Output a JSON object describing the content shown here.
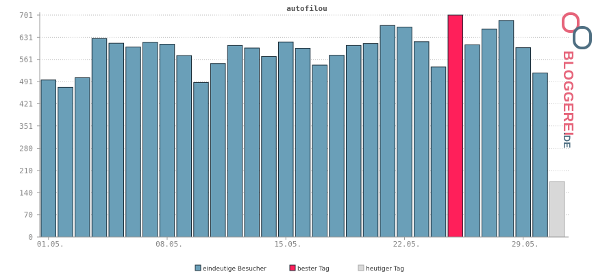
{
  "chart_data": {
    "type": "bar",
    "title": "autofilou",
    "xlabel": "",
    "ylabel": "",
    "ylim": [
      0,
      701
    ],
    "yticks": [
      0,
      70,
      140,
      210,
      280,
      351,
      421,
      491,
      561,
      631,
      701
    ],
    "xtick_labels": [
      {
        "index": 0,
        "label": "01.05."
      },
      {
        "index": 7,
        "label": "08.05."
      },
      {
        "index": 14,
        "label": "15.05."
      },
      {
        "index": 21,
        "label": "22.05."
      },
      {
        "index": 28,
        "label": "29.05."
      }
    ],
    "grid": true,
    "values": [
      496,
      473,
      503,
      627,
      612,
      600,
      615,
      609,
      573,
      488,
      548,
      605,
      597,
      570,
      616,
      596,
      543,
      574,
      605,
      611,
      668,
      663,
      617,
      537,
      701,
      607,
      657,
      684,
      598,
      518,
      175
    ],
    "bar_kinds": [
      "unique",
      "unique",
      "unique",
      "unique",
      "unique",
      "unique",
      "unique",
      "unique",
      "unique",
      "unique",
      "unique",
      "unique",
      "unique",
      "unique",
      "unique",
      "unique",
      "unique",
      "unique",
      "unique",
      "unique",
      "unique",
      "unique",
      "unique",
      "unique",
      "best",
      "unique",
      "unique",
      "unique",
      "unique",
      "unique",
      "today"
    ],
    "series": [
      {
        "key": "unique",
        "name": "eindeutige Besucher",
        "color": "#6a9fb8"
      },
      {
        "key": "best",
        "name": "bester Tag",
        "color": "#ff1f5a"
      },
      {
        "key": "today",
        "name": "heutiger Tag",
        "color": "#d8d8d8"
      }
    ],
    "legend_position": "bottom-center"
  },
  "logo": {
    "text": "BLOGGEREI",
    "suffix": ".DE",
    "colors": {
      "pink": "#e6647a",
      "blue": "#4f6f82"
    }
  }
}
